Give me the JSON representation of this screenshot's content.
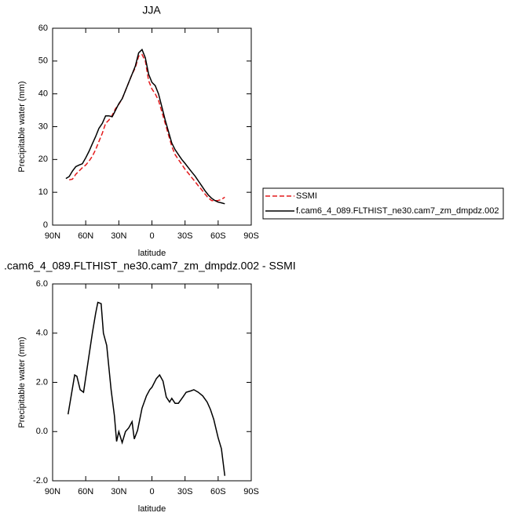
{
  "chart_data": [
    {
      "type": "line",
      "title": "JJA",
      "xlabel": "latitude",
      "ylabel": "Precipitable water (mm)",
      "x": [
        78,
        75,
        72,
        69,
        66,
        63,
        60,
        57,
        54,
        51,
        48,
        45,
        42,
        39,
        36,
        33,
        30,
        27,
        24,
        21,
        18,
        15,
        12,
        9,
        6,
        3,
        0,
        -3,
        -6,
        -9,
        -12,
        -15,
        -18,
        -21,
        -24,
        -27,
        -30,
        -33,
        -36,
        -39,
        -42,
        -45,
        -48,
        -51,
        -54,
        -57,
        -60,
        -63,
        -66
      ],
      "series": [
        {
          "name": "SSMI",
          "color": "#e41a1c",
          "style": "dashed",
          "values": [
            null,
            13.8,
            14,
            15.5,
            16.5,
            17.5,
            18.3,
            19.5,
            21,
            23,
            25.5,
            28,
            31,
            32,
            33.5,
            35.5,
            36.8,
            38.5,
            41,
            43.5,
            46,
            48,
            51.5,
            52,
            50,
            44,
            41.5,
            40,
            38,
            34.5,
            31,
            27.5,
            24,
            21.5,
            20,
            18.5,
            17,
            15.8,
            14.5,
            13.3,
            12,
            10.8,
            9.5,
            8.3,
            7.5,
            7.4,
            7.5,
            7.8,
            8.5
          ]
        },
        {
          "name": "f.cam6_4_089.FLTHIST_ne30.cam7_zm_dmpdz.002",
          "color": "#000000",
          "style": "solid",
          "values": [
            14.2,
            14.8,
            16.5,
            17.8,
            18.3,
            18.7,
            20.5,
            22.5,
            24.8,
            27,
            29.5,
            31,
            33.3,
            33.3,
            33,
            35,
            37,
            38.5,
            41,
            43.5,
            46,
            48.5,
            52.5,
            53.5,
            51,
            46,
            43.5,
            42.5,
            40,
            36,
            32,
            28.5,
            25,
            23,
            21.5,
            20,
            18.8,
            17.5,
            16.2,
            15,
            13.5,
            12,
            10.5,
            9.2,
            8.2,
            7.5,
            7,
            6.8,
            6.5
          ]
        }
      ],
      "xlim": [
        90,
        -90
      ],
      "xticks": [
        {
          "value": 90,
          "label": "90N"
        },
        {
          "value": 60,
          "label": "60N"
        },
        {
          "value": 30,
          "label": "30N"
        },
        0,
        {
          "value": -30,
          "label": "30S"
        },
        {
          "value": -60,
          "label": "60S"
        },
        {
          "value": -90,
          "label": "90S"
        }
      ],
      "ylim": [
        0,
        60
      ],
      "yticks": [
        0,
        10,
        20,
        30,
        40,
        50,
        60
      ],
      "legend": "right"
    },
    {
      "type": "line",
      "title": ".cam6_4_089.FLTHIST_ne30.cam7_zm_dmpdz.002 - SSMI",
      "xlabel": "latitude",
      "ylabel": "Precipitable water (mm)",
      "x": [
        76,
        70,
        68,
        65,
        62,
        58,
        54,
        51,
        49,
        46,
        44,
        41,
        37,
        34,
        32,
        30,
        27,
        24,
        21,
        18,
        16,
        13,
        9,
        5,
        2,
        0,
        -4,
        -7,
        -10,
        -13,
        -16,
        -18,
        -21,
        -24,
        -28,
        -31,
        -35,
        -38,
        -42,
        -46,
        -50,
        -53,
        -56,
        -60,
        -63,
        -66
      ],
      "series": [
        {
          "color": "#000000",
          "style": "solid",
          "values": [
            0.7,
            2.3,
            2.25,
            1.7,
            1.6,
            2.8,
            4.0,
            4.8,
            5.25,
            5.2,
            4.0,
            3.5,
            1.7,
            0.65,
            -0.4,
            0.0,
            -0.45,
            0.0,
            0.15,
            0.4,
            -0.3,
            0.05,
            0.95,
            1.45,
            1.7,
            1.8,
            2.15,
            2.3,
            2.05,
            1.4,
            1.2,
            1.35,
            1.15,
            1.15,
            1.4,
            1.6,
            1.65,
            1.7,
            1.6,
            1.45,
            1.2,
            0.9,
            0.5,
            -0.25,
            -0.7,
            -1.8
          ]
        }
      ],
      "xlim": [
        90,
        -90
      ],
      "xticks": [
        {
          "value": 90,
          "label": "90N"
        },
        {
          "value": 60,
          "label": "60N"
        },
        {
          "value": 30,
          "label": "30N"
        },
        0,
        {
          "value": -30,
          "label": "30S"
        },
        {
          "value": -60,
          "label": "60S"
        },
        {
          "value": -90,
          "label": "90S"
        }
      ],
      "ylim": [
        -2,
        6
      ],
      "yticks": [
        {
          "value": -2,
          "label": "-2.0"
        },
        {
          "value": 0,
          "label": "0.0"
        },
        {
          "value": 2,
          "label": "2.0"
        },
        {
          "value": 4,
          "label": "4.0"
        },
        {
          "value": 6,
          "label": "6.0"
        }
      ]
    }
  ]
}
